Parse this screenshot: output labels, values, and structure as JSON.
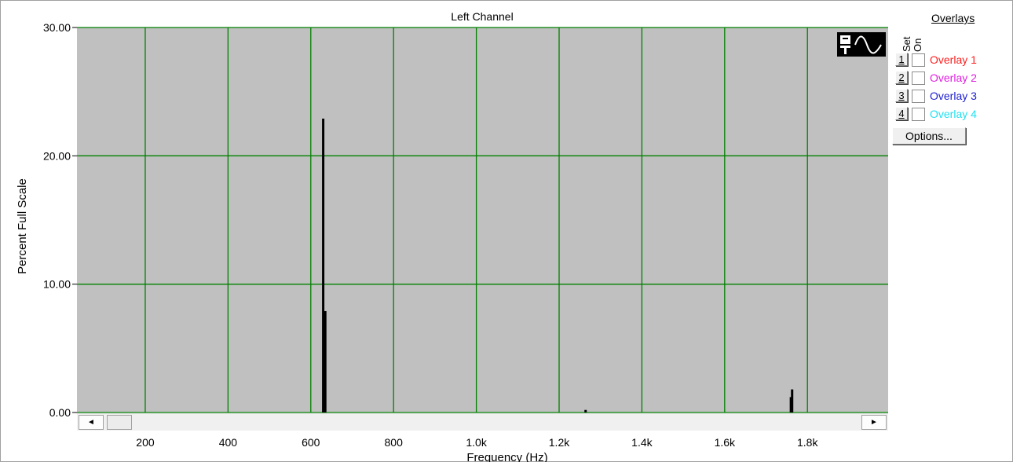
{
  "chart_data": {
    "type": "bar",
    "title": "Left Channel",
    "xlabel": "Frequency (Hz)",
    "ylabel": "Percent Full Scale",
    "xlim": [
      35,
      1995
    ],
    "ylim": [
      0,
      30
    ],
    "x_ticks": [
      200,
      400,
      600,
      800,
      1000,
      1200,
      1400,
      1600,
      1800
    ],
    "x_tick_labels": [
      "200",
      "400",
      "600",
      "800",
      "1.0k",
      "1.2k",
      "1.4k",
      "1.6k",
      "1.8k"
    ],
    "y_ticks": [
      0,
      10,
      20,
      30
    ],
    "y_tick_labels": [
      "0.00",
      "10.00",
      "20.00",
      "30.00"
    ],
    "grid": true,
    "points": [
      {
        "x": 630,
        "y": 22.9
      },
      {
        "x": 635,
        "y": 7.9
      },
      {
        "x": 1264,
        "y": 0.2
      },
      {
        "x": 1760,
        "y": 1.2
      },
      {
        "x": 1763,
        "y": 1.8
      }
    ]
  },
  "colors": {
    "plot_bg": "#c0c0c0",
    "grid": "#008000",
    "bars": "#000000",
    "overlay_1": "#ff2020",
    "overlay_2": "#e020e0",
    "overlay_3": "#2020d0",
    "overlay_4": "#20e0f0"
  },
  "overlays": {
    "title": "Overlays",
    "col_set": "Set",
    "col_on": "On",
    "options_label": "Options...",
    "items": [
      {
        "num": "1",
        "label": "Overlay 1"
      },
      {
        "num": "2",
        "label": "Overlay 2"
      },
      {
        "num": "3",
        "label": "Overlay 3"
      },
      {
        "num": "4",
        "label": "Overlay 4"
      }
    ]
  },
  "icons": {
    "plot_type": "spectrum-time-icon",
    "scroll_left": "◄",
    "scroll_right": "►"
  }
}
